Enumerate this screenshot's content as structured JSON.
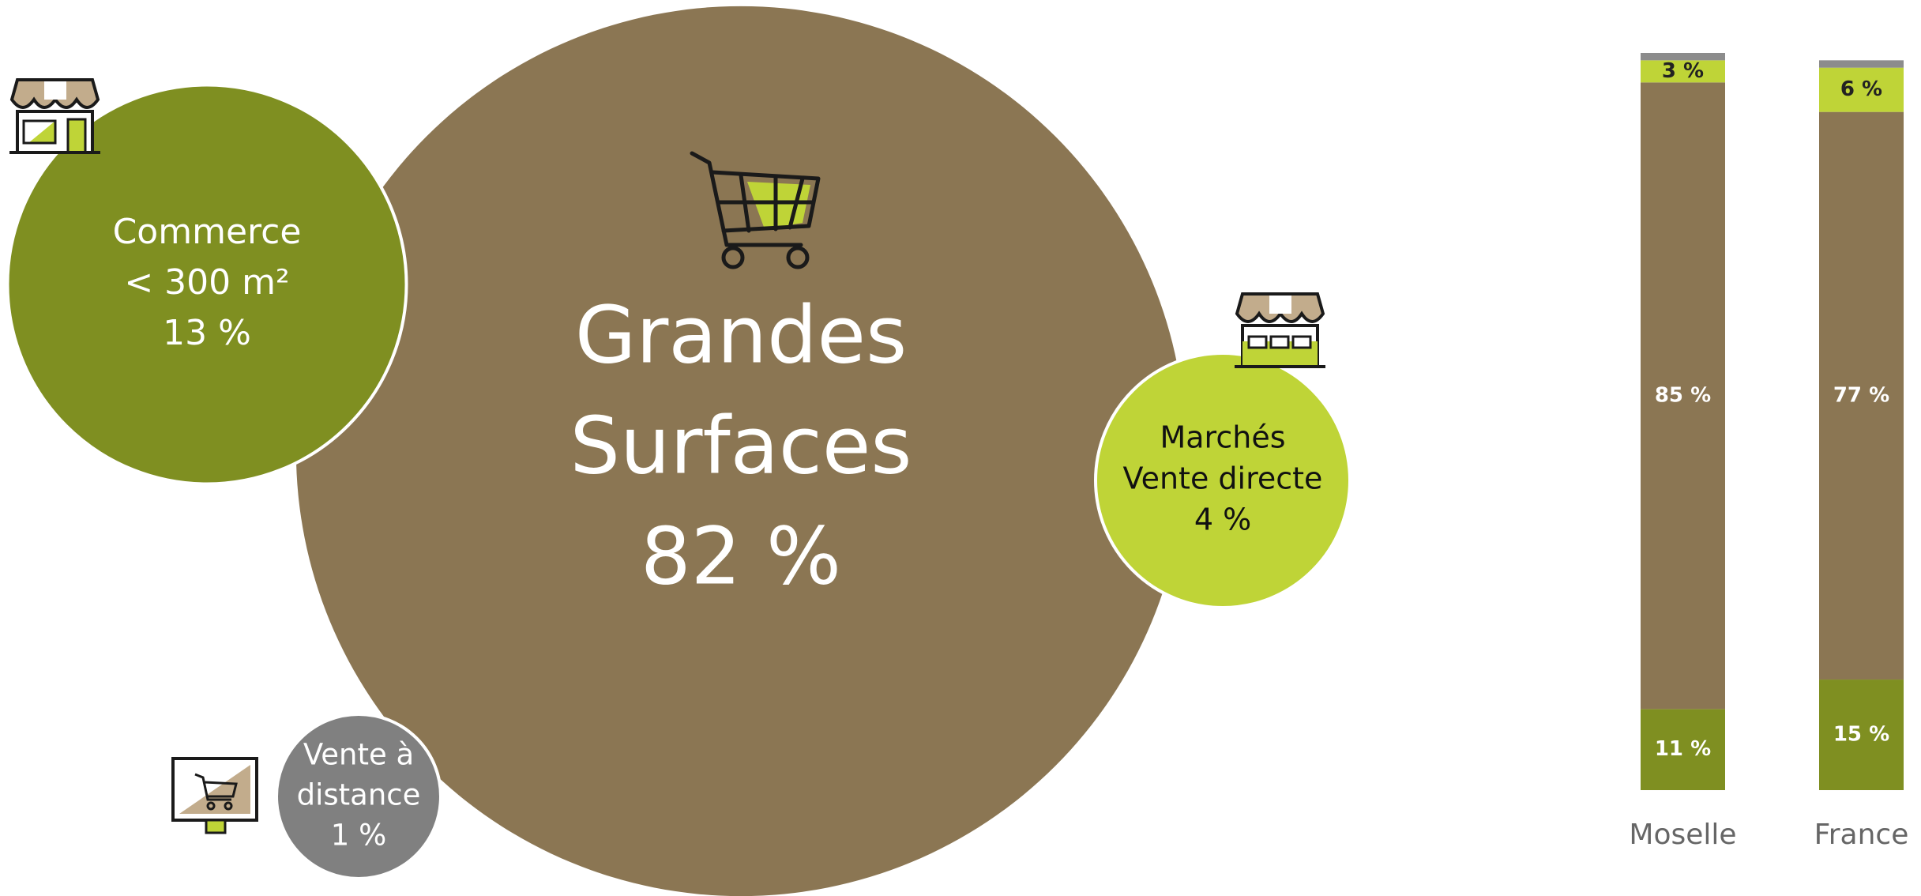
{
  "chart_data": [
    {
      "type": "bubble",
      "categories": [
        [
          "Grandes",
          "Surfaces"
        ],
        [
          "Commerce",
          "< 300 m²"
        ],
        [
          "Marchés",
          "Vente directe"
        ],
        [
          "Vente à",
          "distance"
        ]
      ],
      "values": [
        82,
        13,
        4,
        1
      ],
      "value_labels": [
        "82 %",
        "13 %",
        "4 %",
        "1 %"
      ],
      "colors": [
        "#8b7653",
        "#7f8f21",
        "#bfd437",
        "#808080"
      ]
    },
    {
      "type": "stacked_bar",
      "categories": [
        "Moselle",
        "France"
      ],
      "series": [
        {
          "color": "#7f8f21",
          "values": [
            11,
            15
          ],
          "value_labels": [
            "11 %",
            "15 %"
          ]
        },
        {
          "color": "#8b7653",
          "values": [
            85,
            77
          ],
          "value_labels": [
            "85 %",
            "77 %"
          ]
        },
        {
          "color": "#bfd437",
          "values": [
            3,
            6
          ],
          "value_labels": [
            "3 %",
            "6 %"
          ]
        },
        {
          "color": "#8c8c8c",
          "values": [
            1,
            1
          ]
        }
      ],
      "ylim": [
        0,
        100
      ]
    }
  ]
}
